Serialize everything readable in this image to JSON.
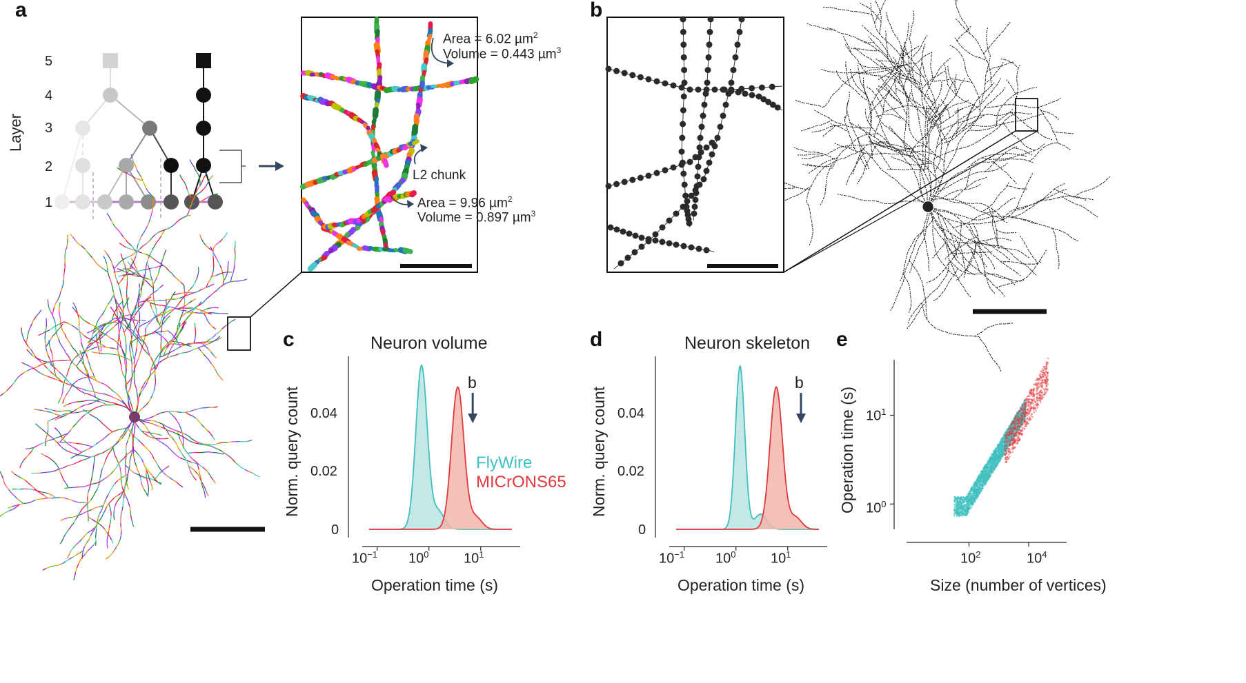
{
  "panel_letters": {
    "a": "a",
    "b": "b",
    "c": "c",
    "d": "d",
    "e": "e"
  },
  "tree": {
    "ylabel": "Layer",
    "layers": [
      "5",
      "4",
      "3",
      "2",
      "1"
    ]
  },
  "inset_a": {
    "ann_top_area": "Area = 6.02 µm",
    "ann_top_volume": "Volume = 0.443 µm",
    "ann_bottom_area": "Area = 9.96 µm",
    "ann_bottom_volume": "Volume = 0.897 µm",
    "sup_area": "2",
    "sup_volume": "3",
    "chunk_label": "L2 chunk"
  },
  "colors": {
    "flywire": "#3fbfbf",
    "microns": "#e0393e",
    "flywire_fill": "#b9e4e2",
    "microns_fill": "#f2b6ab",
    "arrow": "#34465f"
  },
  "chart_data": [
    {
      "type": "area",
      "title": "Neuron volume",
      "xlabel": "Operation time (s)",
      "ylabel": "Norm. query count",
      "xscale": "log",
      "xlim": [
        0.07,
        40
      ],
      "ylim": [
        0,
        0.056
      ],
      "yticks": [
        "0",
        "0.02",
        "0.04"
      ],
      "xtick_bases": [
        "10",
        "10",
        "10"
      ],
      "xtick_exps": [
        "−1",
        "0",
        "1"
      ],
      "marker": "b",
      "marker_x": 7,
      "legend": [
        "FlyWire",
        "MICrONS65"
      ],
      "series": [
        {
          "name": "FlyWire",
          "peak_x": 0.72,
          "peak_y": 0.054,
          "width": 0.11,
          "tail_x": 1.5,
          "tail_y": 0.006
        },
        {
          "name": "MICrONS65",
          "peak_x": 3.6,
          "peak_y": 0.047,
          "width": 0.12,
          "tail_x": 8,
          "tail_y": 0.004
        }
      ]
    },
    {
      "type": "area",
      "title": "Neuron skeleton",
      "xlabel": "Operation time (s)",
      "ylabel": "Norm. query count",
      "xscale": "log",
      "xlim": [
        0.07,
        40
      ],
      "ylim": [
        0,
        0.056
      ],
      "yticks": [
        "0",
        "0.02",
        "0.04"
      ],
      "xtick_bases": [
        "10",
        "10",
        "10"
      ],
      "xtick_exps": [
        "−1",
        "0",
        "1"
      ],
      "marker": "b",
      "marker_x": 18,
      "series": [
        {
          "name": "FlyWire",
          "peak_x": 1.2,
          "peak_y": 0.054,
          "width": 0.09,
          "tail_x": 3,
          "tail_y": 0.005
        },
        {
          "name": "MICrONS65",
          "peak_x": 6.0,
          "peak_y": 0.047,
          "width": 0.12,
          "tail_x": 14,
          "tail_y": 0.004
        }
      ]
    },
    {
      "type": "scatter",
      "xlabel": "Size (number of vertices)",
      "ylabel": "Operation time (s)",
      "xscale": "log",
      "yscale": "log",
      "xlim": [
        1,
        80000
      ],
      "ylim": [
        0.5,
        40
      ],
      "xtick_bases": [
        "10",
        "10"
      ],
      "xtick_exps": [
        "2",
        "4"
      ],
      "ytick_bases": [
        "10",
        "10"
      ],
      "ytick_exps": [
        "0",
        "1"
      ]
    }
  ]
}
